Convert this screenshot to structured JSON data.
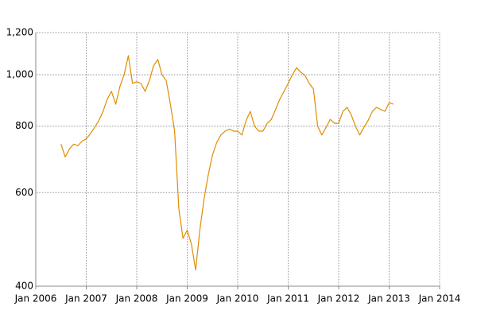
{
  "chart_data": {
    "type": "line",
    "x": [
      "2006-07",
      "2006-08",
      "2006-09",
      "2006-10",
      "2006-11",
      "2006-12",
      "2007-01",
      "2007-02",
      "2007-03",
      "2007-04",
      "2007-05",
      "2007-06",
      "2007-07",
      "2007-08",
      "2007-09",
      "2007-10",
      "2007-11",
      "2007-12",
      "2008-01",
      "2008-02",
      "2008-03",
      "2008-04",
      "2008-05",
      "2008-06",
      "2008-07",
      "2008-08",
      "2008-09",
      "2008-10",
      "2008-11",
      "2008-12",
      "2009-01",
      "2009-02",
      "2009-03",
      "2009-04",
      "2009-05",
      "2009-06",
      "2009-07",
      "2009-08",
      "2009-09",
      "2009-10",
      "2009-11",
      "2009-12",
      "2010-01",
      "2010-02",
      "2010-03",
      "2010-04",
      "2010-05",
      "2010-06",
      "2010-07",
      "2010-08",
      "2010-09",
      "2010-10",
      "2010-11",
      "2010-12",
      "2011-01",
      "2011-02",
      "2011-03",
      "2011-04",
      "2011-05",
      "2011-06",
      "2011-07",
      "2011-08",
      "2011-09",
      "2011-10",
      "2011-11",
      "2011-12",
      "2012-01",
      "2012-02",
      "2012-03",
      "2012-04",
      "2012-05",
      "2012-06",
      "2012-07",
      "2012-08",
      "2012-09",
      "2012-10",
      "2012-11",
      "2012-12",
      "2013-01",
      "2013-02"
    ],
    "series": [
      {
        "color": "#e08c00",
        "values": [
          740,
          700,
          725,
          740,
          735,
          750,
          757,
          775,
          796,
          820,
          853,
          900,
          930,
          880,
          950,
          1000,
          1086,
          963,
          970,
          963,
          930,
          975,
          1040,
          1068,
          1000,
          975,
          880,
          783,
          560,
          492,
          510,
          480,
          429,
          510,
          584,
          648,
          706,
          745,
          770,
          783,
          790,
          783,
          783,
          770,
          820,
          853,
          800,
          783,
          783,
          810,
          824,
          860,
          899,
          930,
          963,
          1000,
          1031,
          1010,
          997,
          963,
          940,
          800,
          770,
          796,
          824,
          810,
          810,
          853,
          868,
          840,
          800,
          770,
          796,
          820,
          853,
          868,
          860,
          853,
          886,
          880
        ]
      }
    ],
    "xlim": [
      "2006-01",
      "2014-01"
    ],
    "xticks": [
      {
        "value": "2006-01",
        "label": "Jan 2006"
      },
      {
        "value": "2007-01",
        "label": "Jan 2007"
      },
      {
        "value": "2008-01",
        "label": "Jan 2008"
      },
      {
        "value": "2009-01",
        "label": "Jan 2009"
      },
      {
        "value": "2010-01",
        "label": "Jan 2010"
      },
      {
        "value": "2011-01",
        "label": "Jan 2011"
      },
      {
        "value": "2012-01",
        "label": "Jan 2012"
      },
      {
        "value": "2013-01",
        "label": "Jan 2013"
      },
      {
        "value": "2014-01",
        "label": "Jan 2014"
      }
    ],
    "ylim": [
      400,
      1200
    ],
    "yticks": [
      400,
      600,
      800,
      {
        "value": 1000,
        "label": "1,000"
      },
      {
        "value": 1200,
        "label": "1,200"
      }
    ],
    "log_scale": true,
    "grid": true
  }
}
